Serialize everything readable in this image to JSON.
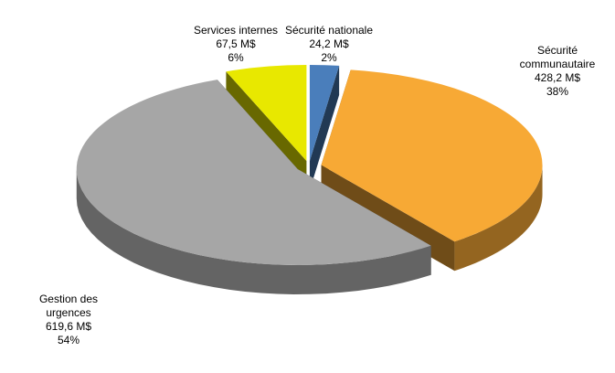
{
  "chart_data": {
    "type": "pie",
    "categories": [
      "Sécurité nationale",
      "Sécurité communautaire",
      "Gestion des urgences",
      "Services internes"
    ],
    "values": [
      24.2,
      428.2,
      619.6,
      67.5
    ],
    "value_labels": [
      "24,2 M$",
      "428,2 M$",
      "619,6 M$",
      "67,5 M$"
    ],
    "percent_labels": [
      "2%",
      "38%",
      "54%",
      "6%"
    ],
    "colors": [
      "#4a7ebb",
      "#f7a935",
      "#a6a6a6",
      "#e8e800"
    ]
  }
}
